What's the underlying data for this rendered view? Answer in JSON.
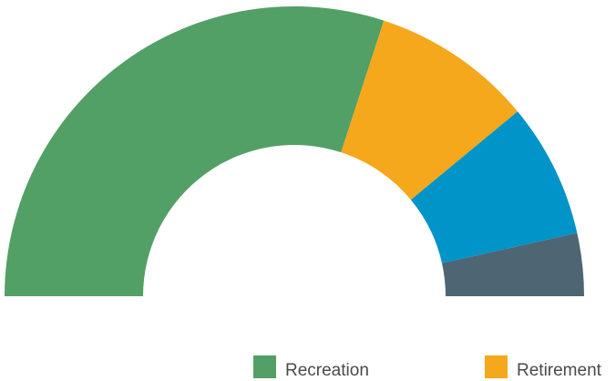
{
  "chart_data": {
    "type": "pie",
    "variant": "half-donut",
    "slices": [
      {
        "label": "Recreation",
        "value": 60,
        "color": "#52a065"
      },
      {
        "label": "Retirement",
        "value": 18,
        "color": "#f5a81b"
      },
      {
        "label": "",
        "value": 15,
        "color": "#0094c9"
      },
      {
        "label": "",
        "value": 7,
        "color": "#4e6573"
      }
    ],
    "legend": {
      "placement": "bottom",
      "entries": [
        {
          "label": "Recreation",
          "color": "#52a065"
        },
        {
          "label": "Retirement",
          "color": "#f5a81b"
        }
      ]
    }
  }
}
